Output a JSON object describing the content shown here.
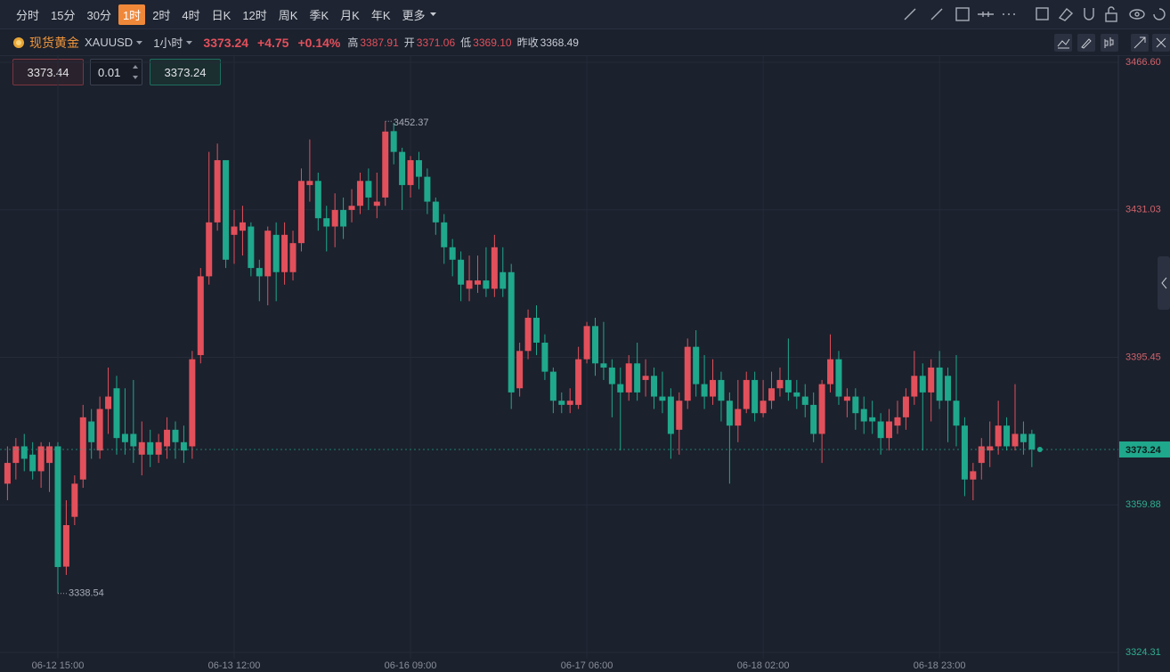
{
  "toolbar": {
    "periods": [
      "分时",
      "15分",
      "30分",
      "1时",
      "2时",
      "4时",
      "日K",
      "12时",
      "周K",
      "季K",
      "月K",
      "年K",
      "更多"
    ],
    "active": "1时"
  },
  "symbol": {
    "name": "现货黄金",
    "code": "XAUUSD",
    "interval": "1小时",
    "price": "3373.24",
    "change": "+4.75",
    "change_pct": "+0.14%",
    "high_label": "高",
    "high": "3387.91",
    "open_label": "开",
    "open": "3371.06",
    "low_label": "低",
    "low": "3369.10",
    "prev_close_label": "昨收",
    "prev_close": "3368.49"
  },
  "order": {
    "sell": "3373.44",
    "qty": "0.01",
    "buy": "3373.24"
  },
  "chart_data": {
    "type": "candlestick",
    "categories": [
      null,
      null,
      null,
      null,
      null,
      null,
      "06-12 15:00",
      null,
      null,
      null,
      null,
      null,
      null,
      null,
      null,
      null,
      null,
      null,
      null,
      null,
      null,
      null,
      null,
      null,
      null,
      null,
      null,
      "06-13 12:00",
      null,
      null,
      null,
      null,
      null,
      null,
      null,
      null,
      null,
      null,
      null,
      null,
      null,
      null,
      null,
      null,
      null,
      null,
      null,
      null,
      "06-16 09:00",
      null,
      null,
      null,
      null,
      null,
      null,
      null,
      null,
      null,
      null,
      null,
      null,
      null,
      null,
      null,
      null,
      null,
      null,
      null,
      null,
      "06-17 06:00",
      null,
      null,
      null,
      null,
      null,
      null,
      null,
      null,
      null,
      null,
      null,
      null,
      null,
      null,
      null,
      null,
      null,
      null,
      null,
      null,
      "06-18 02:00",
      null,
      null,
      null,
      null,
      null,
      null,
      null,
      null,
      null,
      null,
      null,
      null,
      null,
      null,
      null,
      null,
      null,
      null,
      null,
      null,
      "06-18 23:00",
      null,
      null,
      null,
      null,
      null,
      null,
      null,
      null,
      null,
      null,
      null
    ],
    "open": [
      3365,
      3370,
      3374,
      3372,
      3368,
      3370,
      3374,
      3345,
      3357,
      3366,
      3380,
      3373,
      3383,
      3388,
      3377,
      3377,
      3372,
      3375,
      3372,
      3374,
      3378,
      3375,
      3374,
      3396,
      3415,
      3428,
      3443,
      3425,
      3426,
      3427,
      3417,
      3415,
      3425,
      3416,
      3416,
      3423,
      3437,
      3438,
      3429,
      3427,
      3431,
      3431,
      3432,
      3438,
      3432,
      3434,
      3450,
      3445,
      3437,
      3443,
      3439,
      3433,
      3428,
      3422,
      3419,
      3412,
      3413,
      3414,
      3412,
      3416,
      3416,
      3388,
      3397,
      3405,
      3399,
      3392,
      3385,
      3384,
      3384,
      3395,
      3403,
      3394,
      3393,
      3389,
      3387,
      3394,
      3390,
      3391,
      3386,
      3386,
      3378,
      3385,
      3398,
      3389,
      3386,
      3390,
      3385,
      3379,
      3383,
      3390,
      3382,
      3385,
      3388,
      3390,
      3387,
      3386,
      3384,
      3377,
      3389,
      3395,
      3385,
      3386,
      3383,
      3381,
      3380,
      3376,
      3379,
      3381,
      3386,
      3391,
      3387,
      3393,
      3391,
      3385,
      3379,
      3366,
      3370,
      3373,
      3374,
      3379,
      3374,
      3377,
      3377
    ],
    "high": [
      3374,
      3376,
      3377,
      3375,
      3375,
      3375,
      3375,
      3361,
      3367,
      3384,
      3383,
      3386,
      3393,
      3391,
      3388,
      3390,
      3380,
      3378,
      3377,
      3381,
      3380,
      3379,
      3397,
      3417,
      3445,
      3447,
      3443,
      3431,
      3432,
      3428,
      3419,
      3427,
      3428,
      3428,
      3426,
      3441,
      3448,
      3440,
      3432,
      3435,
      3434,
      3436,
      3440,
      3441,
      3440,
      3452.37,
      3452,
      3446,
      3444,
      3445,
      3441,
      3434,
      3430,
      3424,
      3421,
      3420,
      3420,
      3422,
      3425,
      3422,
      3418,
      3399,
      3407,
      3408,
      3401,
      3393,
      3387,
      3388,
      3398,
      3404,
      3405,
      3404,
      3395,
      3393,
      3396,
      3399,
      3395,
      3393,
      3392,
      3388,
      3387,
      3400,
      3402,
      3396,
      3395,
      3392,
      3387,
      3390,
      3392,
      3392,
      3390,
      3392,
      3393,
      3400,
      3390,
      3389,
      3387,
      3390,
      3401,
      3397,
      3388,
      3388,
      3386,
      3385,
      3382,
      3383,
      3385,
      3388,
      3397,
      3394,
      3395,
      3397,
      3393,
      3396,
      3381,
      3370,
      3376,
      3380,
      3385,
      3381,
      3389,
      3380,
      3378
    ],
    "low": [
      3361,
      3366,
      3368,
      3366,
      3364,
      3363,
      3338.54,
      3343,
      3355,
      3364,
      3371,
      3371,
      3377,
      3372,
      3372,
      3370,
      3367,
      3369,
      3370,
      3371,
      3371,
      3370,
      3371,
      3394,
      3413,
      3426,
      3417,
      3418,
      3420,
      3415,
      3409,
      3408,
      3409,
      3413,
      3414,
      3421,
      3433,
      3426,
      3421,
      3422,
      3424,
      3428,
      3430,
      3431,
      3429,
      3432,
      3442,
      3431,
      3434,
      3436,
      3430,
      3425,
      3418,
      3415,
      3409,
      3409,
      3411,
      3410,
      3410,
      3410,
      3383,
      3386,
      3395,
      3396,
      3390,
      3382,
      3382,
      3382,
      3383,
      3394,
      3391,
      3390,
      3381,
      3373,
      3385,
      3385,
      3386,
      3383,
      3382,
      3371,
      3372,
      3383,
      3386,
      3383,
      3384,
      3380,
      3365,
      3375,
      3382,
      3380,
      3381,
      3383,
      3386,
      3385,
      3383,
      3381,
      3375,
      3370,
      3387,
      3384,
      3381,
      3378,
      3377,
      3377,
      3372,
      3373,
      3377,
      3378,
      3384,
      3373,
      3380,
      3383,
      3375,
      3374,
      3362,
      3361,
      3366,
      3369,
      3372,
      3373,
      3373,
      3372,
      3369
    ],
    "close": [
      3370,
      3374,
      3371,
      3368,
      3374,
      3374,
      3344.9,
      3355,
      3365,
      3381,
      3375,
      3383,
      3386,
      3376,
      3375,
      3374,
      3375,
      3372,
      3375,
      3378,
      3375,
      3373,
      3395,
      3415,
      3428,
      3443,
      3419,
      3427,
      3428,
      3417,
      3415,
      3426,
      3416,
      3425,
      3423,
      3438,
      3438,
      3429,
      3427,
      3431,
      3427,
      3432,
      3438,
      3434,
      3433,
      3449.9,
      3445,
      3437,
      3443,
      3439,
      3433,
      3428,
      3422,
      3419,
      3413,
      3414,
      3414,
      3412,
      3422,
      3412,
      3387,
      3397,
      3405,
      3399,
      3392,
      3385,
      3384,
      3385,
      3395,
      3403,
      3394,
      3393,
      3389,
      3387,
      3394,
      3387,
      3391,
      3386,
      3385,
      3377,
      3385,
      3398,
      3389,
      3386,
      3390,
      3385,
      3379,
      3383,
      3390,
      3382,
      3385,
      3388,
      3390,
      3387,
      3386,
      3384,
      3377,
      3389,
      3395,
      3386,
      3386,
      3382,
      3380,
      3380,
      3376,
      3380,
      3381,
      3386,
      3391,
      3387,
      3393,
      3385,
      3385,
      3379,
      3366,
      3368,
      3374,
      3374,
      3379,
      3374,
      3377,
      3375,
      3373.24
    ],
    "ylim": [
      3324.31,
      3466.6
    ],
    "yticks": [
      3324.31,
      3359.88,
      3395.45,
      3431.03,
      {
        "value": 3466.6,
        "label": "3466.60"
      }
    ],
    "grid": true,
    "up_color": "#e2505b",
    "down_color": "#1fa88c",
    "max_label": "3452.37",
    "min_label": "3338.54",
    "last_label": "3373.24"
  }
}
